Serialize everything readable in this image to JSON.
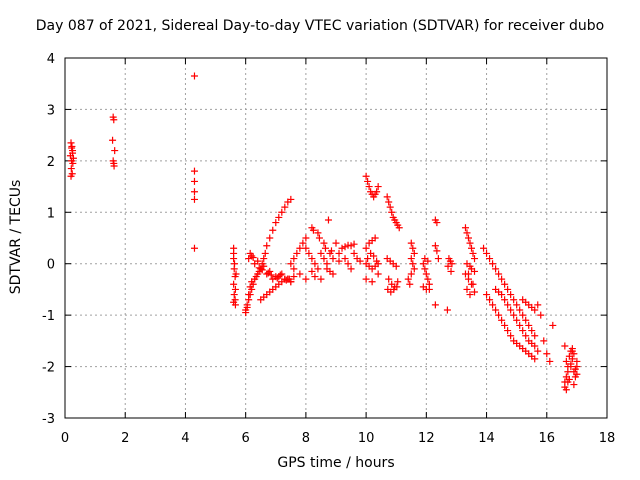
{
  "chart_data": {
    "type": "scatter",
    "title": "Day 087 of 2021, Sidereal Day-to-day VTEC variation (SDTVAR) for receiver dubo",
    "xlabel": "GPS time / hours",
    "ylabel": "SDTVAR / TECUs",
    "xlim": [
      0,
      18
    ],
    "ylim": [
      -3,
      4
    ],
    "xticks": [
      0,
      2,
      4,
      6,
      8,
      10,
      12,
      14,
      16,
      18
    ],
    "yticks": [
      -3,
      -2,
      -1,
      0,
      1,
      2,
      3,
      4
    ],
    "grid": true,
    "marker": "+",
    "color": "#ff0000",
    "series": [
      {
        "name": "SDTVAR",
        "x": [
          0.2,
          0.22,
          0.25,
          0.18,
          0.22,
          0.26,
          0.24,
          0.2,
          0.23,
          0.25,
          0.28,
          0.21,
          1.6,
          1.62,
          1.58,
          1.65,
          1.6,
          1.62,
          1.63,
          4.3,
          4.3,
          4.3,
          4.3,
          4.3,
          4.3,
          5.6,
          5.6,
          5.62,
          5.65,
          5.6,
          5.62,
          5.65,
          5.66,
          5.6,
          5.63,
          5.66,
          5.6,
          5.68,
          6.0,
          6.05,
          6.1,
          6.15,
          6.2,
          6.25,
          6.0,
          6.05,
          6.1,
          6.15,
          6.2,
          6.3,
          6.35,
          6.4,
          6.45,
          6.5,
          6.55,
          6.6,
          6.65,
          6.7,
          6.8,
          6.9,
          7.0,
          7.1,
          7.2,
          7.3,
          7.4,
          7.5,
          6.1,
          6.3,
          6.5,
          6.7,
          6.9,
          7.1,
          7.3,
          7.5,
          6.2,
          6.4,
          6.6,
          6.8,
          7.0,
          7.2,
          7.4,
          6.15,
          6.45,
          6.75,
          7.05,
          7.35,
          6.25,
          6.55,
          6.85,
          7.15,
          7.45,
          6.5,
          6.6,
          6.7,
          6.8,
          6.9,
          7.0,
          7.1,
          7.2,
          7.3,
          7.4,
          7.5,
          7.6,
          7.5,
          7.6,
          7.7,
          7.8,
          7.9,
          8.0,
          7.6,
          7.8,
          8.0,
          8.2,
          8.0,
          8.1,
          8.2,
          8.3,
          8.4,
          8.5,
          8.6,
          8.7,
          8.8,
          8.9,
          8.2,
          8.4,
          8.6,
          8.8,
          8.3,
          8.5,
          8.7,
          8.9,
          8.25,
          8.45,
          8.65,
          8.85,
          9.0,
          9.2,
          9.1,
          9.3,
          9.4,
          9.5,
          9.6,
          9.7,
          9.8,
          9.5,
          9.6,
          9.4,
          9.3,
          9.1,
          8.75,
          10.0,
          10.05,
          10.1,
          10.15,
          10.2,
          10.25,
          10.3,
          10.35,
          10.4,
          10.0,
          10.1,
          10.2,
          10.3,
          10.0,
          10.1,
          10.2,
          10.3,
          10.4,
          10.0,
          10.2,
          10.4,
          10.05,
          10.15,
          10.25,
          10.35,
          10.7,
          10.75,
          10.8,
          10.85,
          10.9,
          10.95,
          11.0,
          11.05,
          11.1,
          10.7,
          10.8,
          10.9,
          11.0,
          10.75,
          10.85,
          10.95,
          11.05,
          10.72,
          10.82,
          10.92,
          11.02,
          11.5,
          11.55,
          11.6,
          11.5,
          11.55,
          11.6,
          11.5,
          11.4,
          11.45,
          11.9,
          11.95,
          12.0,
          12.05,
          12.1,
          11.9,
          12.0,
          12.1,
          11.95,
          12.05,
          12.3,
          12.35,
          12.3,
          12.35,
          12.4,
          12.3,
          12.7,
          12.75,
          12.8,
          12.85,
          12.72,
          12.82,
          13.3,
          13.35,
          13.4,
          13.45,
          13.5,
          13.55,
          13.6,
          13.3,
          13.4,
          13.5,
          13.6,
          13.35,
          13.45,
          13.55,
          13.4,
          13.5,
          13.6,
          13.35,
          13.45,
          13.9,
          14.0,
          14.1,
          14.2,
          14.3,
          14.4,
          14.5,
          14.6,
          14.7,
          14.8,
          14.9,
          15.0,
          15.1,
          15.2,
          15.3,
          15.4,
          15.5,
          15.6,
          14.0,
          14.1,
          14.2,
          14.3,
          14.4,
          14.5,
          14.6,
          14.7,
          14.8,
          14.9,
          15.0,
          15.1,
          15.2,
          15.3,
          15.4,
          15.5,
          15.6,
          14.3,
          14.4,
          14.5,
          14.6,
          14.7,
          14.8,
          14.9,
          15.0,
          15.1,
          15.2,
          15.3,
          15.4,
          15.5,
          15.6,
          15.7,
          15.2,
          15.3,
          15.4,
          15.5,
          15.6,
          15.7,
          15.8,
          15.9,
          16.0,
          16.1,
          16.2,
          16.6,
          16.65,
          16.7,
          16.75,
          16.8,
          16.85,
          16.9,
          16.95,
          17.0,
          16.6,
          16.7,
          16.8,
          16.9,
          17.0,
          16.65,
          16.75,
          16.85,
          16.95,
          16.6,
          16.7,
          16.8,
          16.9,
          17.0,
          16.65,
          16.85
        ],
        "y": [
          2.35,
          2.25,
          2.15,
          2.1,
          2.0,
          1.95,
          1.75,
          1.7,
          2.28,
          2.2,
          2.05,
          1.85,
          2.85,
          2.8,
          2.4,
          2.2,
          2.0,
          1.95,
          1.9,
          3.65,
          1.8,
          1.6,
          1.4,
          1.25,
          0.3,
          0.3,
          0.1,
          -0.1,
          -0.25,
          -0.4,
          -0.6,
          -0.7,
          -0.8,
          0.2,
          0.0,
          -0.5,
          -0.75,
          -0.2,
          -0.9,
          -0.85,
          -0.7,
          -0.6,
          -0.5,
          -0.4,
          -0.95,
          -0.8,
          -0.6,
          -0.45,
          -0.35,
          -0.3,
          -0.25,
          -0.2,
          -0.15,
          -0.1,
          0.0,
          0.1,
          0.2,
          0.35,
          0.5,
          0.65,
          0.8,
          0.9,
          1.0,
          1.1,
          1.2,
          1.25,
          0.1,
          0.0,
          -0.1,
          -0.2,
          -0.3,
          -0.25,
          -0.3,
          -0.35,
          0.15,
          0.05,
          -0.05,
          -0.15,
          -0.25,
          -0.2,
          -0.3,
          0.2,
          -0.08,
          -0.18,
          -0.28,
          -0.32,
          0.12,
          -0.12,
          -0.22,
          -0.22,
          -0.3,
          -0.7,
          -0.65,
          -0.6,
          -0.55,
          -0.5,
          -0.45,
          -0.4,
          -0.35,
          -0.3,
          -0.3,
          -0.35,
          -0.25,
          0.0,
          0.1,
          0.2,
          0.3,
          0.4,
          0.5,
          -0.1,
          -0.2,
          -0.3,
          -0.15,
          0.3,
          0.2,
          0.1,
          0.0,
          -0.1,
          0.2,
          0.1,
          0.0,
          -0.15,
          -0.2,
          0.7,
          0.6,
          0.4,
          0.2,
          -0.25,
          -0.3,
          -0.1,
          0.1,
          0.65,
          0.5,
          0.3,
          0.25,
          0.4,
          0.3,
          0.2,
          0.1,
          0.0,
          -0.1,
          0.2,
          0.1,
          0.05,
          0.35,
          0.38,
          0.36,
          0.33,
          0.05,
          0.85,
          1.7,
          1.6,
          1.5,
          1.4,
          1.35,
          1.3,
          1.35,
          1.4,
          1.5,
          0.3,
          0.4,
          0.45,
          0.5,
          0.0,
          -0.05,
          -0.1,
          -0.05,
          0.0,
          -0.3,
          -0.35,
          -0.2,
          0.1,
          0.2,
          0.15,
          0.05,
          1.3,
          1.2,
          1.1,
          1.0,
          0.9,
          0.85,
          0.8,
          0.75,
          0.7,
          0.1,
          0.05,
          0.0,
          -0.05,
          -0.3,
          -0.4,
          -0.45,
          -0.35,
          -0.5,
          -0.55,
          -0.5,
          -0.45,
          0.4,
          0.3,
          0.2,
          0.1,
          0.0,
          -0.1,
          -0.2,
          -0.3,
          -0.4,
          0.0,
          -0.1,
          -0.2,
          -0.3,
          -0.4,
          -0.45,
          -0.5,
          -0.5,
          0.1,
          0.05,
          0.85,
          0.8,
          0.35,
          0.25,
          0.1,
          -0.8,
          -0.9,
          0.1,
          0.05,
          0.0,
          -0.05,
          -0.15,
          0.7,
          0.6,
          0.5,
          0.4,
          0.3,
          0.2,
          0.1,
          -0.2,
          -0.3,
          -0.4,
          -0.55,
          -0.5,
          -0.6,
          -0.4,
          -0.2,
          -0.1,
          -0.15,
          0.0,
          -0.05,
          0.3,
          0.2,
          0.1,
          0.0,
          -0.1,
          -0.2,
          -0.3,
          -0.4,
          -0.5,
          -0.6,
          -0.7,
          -0.8,
          -0.9,
          -1.0,
          -1.1,
          -1.2,
          -1.3,
          -1.4,
          -0.6,
          -0.7,
          -0.8,
          -0.9,
          -1.0,
          -1.1,
          -1.2,
          -1.3,
          -1.4,
          -1.5,
          -1.55,
          -1.6,
          -1.65,
          -1.7,
          -1.75,
          -1.8,
          -1.85,
          -0.5,
          -0.55,
          -0.6,
          -0.7,
          -0.8,
          -0.9,
          -1.0,
          -1.1,
          -1.2,
          -1.3,
          -1.4,
          -1.5,
          -1.55,
          -1.6,
          -1.7,
          -0.7,
          -0.75,
          -0.8,
          -0.85,
          -0.9,
          -0.8,
          -1.0,
          -1.5,
          -1.75,
          -1.9,
          -1.2,
          -2.4,
          -2.2,
          -2.0,
          -1.8,
          -1.7,
          -1.65,
          -2.1,
          -2.2,
          -1.9,
          -1.6,
          -2.3,
          -2.0,
          -1.75,
          -2.15,
          -1.9,
          -2.25,
          -1.85,
          -2.05,
          -2.3,
          -2.1,
          -1.95,
          -2.35,
          -2.0,
          -2.45,
          -1.7
        ]
      }
    ]
  }
}
